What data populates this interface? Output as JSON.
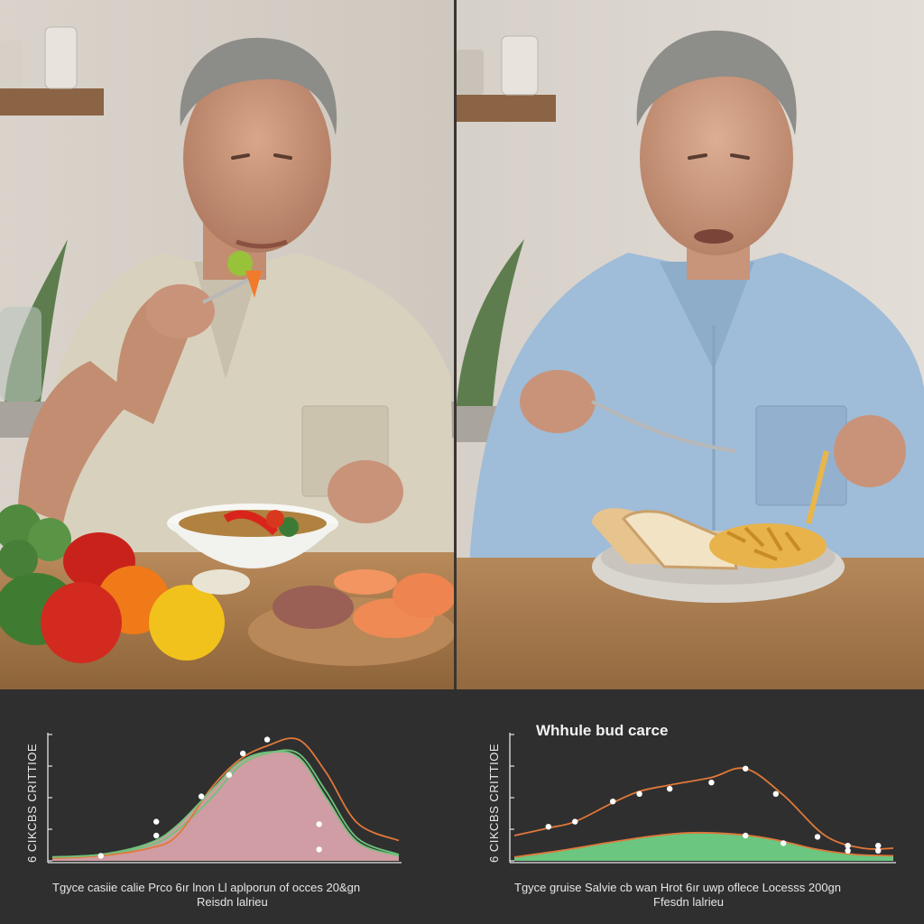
{
  "scene": {
    "left_panel": "man-eating-salad",
    "right_panel": "man-eating-bread-and-pasta"
  },
  "chart_data": [
    {
      "type": "area",
      "title": "",
      "ylabel": "6 CIKCBS CRITTIOE",
      "xlabel": "Tgyce casiie calie Prco 6ır lnon Ll aplporun of occes 20&gn",
      "xlabel2": "Reisdn lalrieu",
      "xlim": [
        0,
        10
      ],
      "ylim": [
        0,
        100
      ],
      "grid": false,
      "colors": {
        "line_a": "#e0783a",
        "line_b": "#6fc27a",
        "fill": "#d8a3aa",
        "points": "#ffffff"
      },
      "series": [
        {
          "x": [
            0,
            1.4,
            2.8,
            3.6,
            4.6,
            5.4,
            6.2,
            7.1,
            7.9,
            8.8,
            10
          ],
          "values": [
            3,
            5,
            12,
            24,
            50,
            75,
            85,
            85,
            55,
            18,
            5
          ]
        },
        {
          "x": [
            0,
            1.4,
            2.8,
            3.6,
            4.6,
            5.4,
            6.2,
            7.1,
            7.9,
            8.8,
            10
          ],
          "values": [
            2,
            4,
            10,
            20,
            58,
            80,
            91,
            96,
            70,
            30,
            16
          ]
        },
        {
          "x": [
            0,
            1.4,
            2.8,
            3.6,
            4.6,
            5.4,
            6.2,
            7.1,
            7.9,
            8.8,
            10
          ],
          "values": [
            3,
            5,
            14,
            28,
            56,
            78,
            86,
            82,
            50,
            15,
            4
          ]
        }
      ],
      "points": [
        {
          "x": 1.4,
          "y": 4
        },
        {
          "x": 3.0,
          "y": 20
        },
        {
          "x": 3.0,
          "y": 31
        },
        {
          "x": 4.3,
          "y": 51
        },
        {
          "x": 5.1,
          "y": 68
        },
        {
          "x": 5.5,
          "y": 85
        },
        {
          "x": 6.2,
          "y": 96
        },
        {
          "x": 7.7,
          "y": 29
        },
        {
          "x": 7.7,
          "y": 9
        }
      ]
    },
    {
      "type": "area",
      "title": "Whhule bud carce",
      "ylabel": "6 CIKCBS CRITTIOE",
      "xlabel": "Tgyce gruise Salvie cb wan Hrot 6ır uwp oflece Locesss 200gn",
      "xlabel2": "Ffesdn lalrieu",
      "xlim": [
        0,
        10
      ],
      "ylim": [
        0,
        100
      ],
      "grid": false,
      "colors": {
        "line_a": "#e0783a",
        "line_b": "#6fc27a",
        "fill": "#6fcf85",
        "points": "#ffffff"
      },
      "series": [
        {
          "x": [
            0,
            0.9,
            1.6,
            2.6,
            3.3,
            4.1,
            5.2,
            6.1,
            7.1,
            8.2,
            9.2,
            10
          ],
          "values": [
            20,
            26,
            31,
            46,
            55,
            60,
            66,
            73,
            52,
            20,
            10,
            10
          ]
        },
        {
          "x": [
            0,
            1.2,
            2.4,
            3.5,
            4.5,
            5.3,
            6.2,
            7.0,
            8.0,
            9.0,
            10
          ],
          "values": [
            3,
            8,
            14,
            19,
            22,
            22,
            20,
            16,
            9,
            5,
            4
          ]
        }
      ],
      "points": [
        {
          "x": 0.9,
          "y": 27
        },
        {
          "x": 1.6,
          "y": 31
        },
        {
          "x": 2.6,
          "y": 47
        },
        {
          "x": 3.3,
          "y": 53
        },
        {
          "x": 4.1,
          "y": 57
        },
        {
          "x": 5.2,
          "y": 62
        },
        {
          "x": 6.1,
          "y": 73
        },
        {
          "x": 6.9,
          "y": 53
        },
        {
          "x": 7.1,
          "y": 14
        },
        {
          "x": 6.1,
          "y": 20
        },
        {
          "x": 8.0,
          "y": 19
        },
        {
          "x": 8.8,
          "y": 12
        },
        {
          "x": 8.8,
          "y": 8
        },
        {
          "x": 9.6,
          "y": 12
        },
        {
          "x": 9.6,
          "y": 8
        }
      ]
    }
  ]
}
